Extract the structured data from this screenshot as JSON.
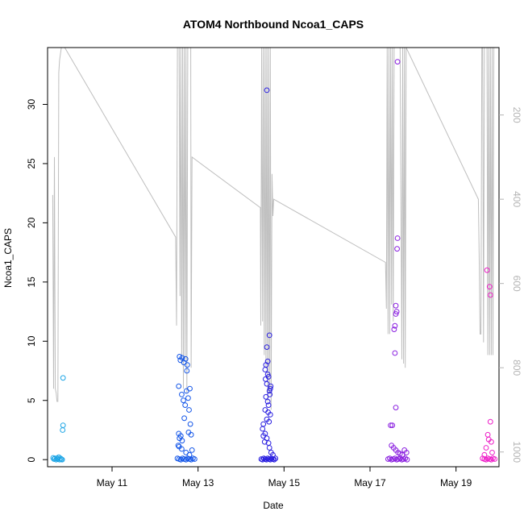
{
  "chart_data": {
    "type": "scatter",
    "title": "ATOM4 Northbound Ncoa1_CAPS",
    "xlabel": "Date",
    "ylabel": "Ncoa1_CAPS",
    "x_ticks": [
      "May 11",
      "May 13",
      "May 15",
      "May 17",
      "May 19"
    ],
    "x_tick_days": [
      11,
      13,
      15,
      17,
      19
    ],
    "xlim": [
      9.5,
      20.0
    ],
    "ylim": [
      -0.6,
      34.8
    ],
    "y_ticks": [
      0,
      5,
      10,
      15,
      20,
      25,
      30
    ],
    "y2_ticks": [
      200,
      400,
      600,
      800,
      1000
    ],
    "y2lim": [
      1035,
      40
    ],
    "y2_reversed": true,
    "grid": false,
    "colors": {
      "depth_line": "#bebebe",
      "cast1": "#1fa6e6",
      "cast2": "#1456e8",
      "cast3": "#2a1fe0",
      "cast4": "#8a1fe0",
      "cast5": "#ee1fc8"
    },
    "series": [
      {
        "color": "#1fa6e6",
        "points": [
          [
            9.63,
            0.15
          ],
          [
            9.65,
            0.05
          ],
          [
            9.67,
            0.1
          ],
          [
            9.7,
            0.0
          ],
          [
            9.72,
            0.12
          ],
          [
            9.74,
            0.05
          ],
          [
            9.76,
            0.2
          ],
          [
            9.78,
            0.0
          ],
          [
            9.8,
            0.1
          ],
          [
            9.82,
            0.05
          ],
          [
            9.84,
            0.0
          ],
          [
            9.86,
            6.9
          ],
          [
            9.86,
            2.9
          ],
          [
            9.85,
            2.5
          ]
        ]
      },
      {
        "color": "#1456e8",
        "points": [
          [
            12.52,
            0.1
          ],
          [
            12.56,
            0.05
          ],
          [
            12.6,
            0.0
          ],
          [
            12.64,
            0.1
          ],
          [
            12.68,
            0.05
          ],
          [
            12.72,
            0.0
          ],
          [
            12.76,
            0.1
          ],
          [
            12.8,
            0.05
          ],
          [
            12.84,
            0.0
          ],
          [
            12.88,
            0.1
          ],
          [
            12.92,
            0.05
          ],
          [
            12.57,
            8.7
          ],
          [
            12.59,
            8.4
          ],
          [
            12.63,
            8.6
          ],
          [
            12.67,
            8.2
          ],
          [
            12.71,
            8.5
          ],
          [
            12.75,
            8.0
          ],
          [
            12.55,
            6.2
          ],
          [
            12.62,
            5.5
          ],
          [
            12.66,
            5.0
          ],
          [
            12.7,
            4.6
          ],
          [
            12.73,
            5.8
          ],
          [
            12.77,
            5.2
          ],
          [
            12.79,
            4.2
          ],
          [
            12.68,
            3.5
          ],
          [
            12.82,
            3.0
          ],
          [
            12.55,
            2.2
          ],
          [
            12.57,
            1.8
          ],
          [
            12.6,
            2.0
          ],
          [
            12.63,
            1.6
          ],
          [
            12.78,
            2.3
          ],
          [
            12.84,
            2.1
          ],
          [
            12.56,
            1.1
          ],
          [
            12.62,
            0.9
          ],
          [
            12.72,
            0.6
          ],
          [
            12.8,
            0.4
          ],
          [
            12.86,
            0.8
          ],
          [
            12.74,
            7.5
          ],
          [
            12.81,
            6.0
          ],
          [
            12.54,
            1.2
          ]
        ]
      },
      {
        "color": "#2a1fe0",
        "points": [
          [
            14.47,
            0.05
          ],
          [
            14.5,
            0.0
          ],
          [
            14.53,
            0.1
          ],
          [
            14.56,
            0.05
          ],
          [
            14.59,
            0.0
          ],
          [
            14.62,
            0.1
          ],
          [
            14.65,
            0.05
          ],
          [
            14.68,
            0.0
          ],
          [
            14.71,
            0.1
          ],
          [
            14.74,
            0.05
          ],
          [
            14.77,
            0.0
          ],
          [
            14.8,
            0.1
          ],
          [
            14.6,
            31.2
          ],
          [
            14.66,
            10.5
          ],
          [
            14.58,
            8.0
          ],
          [
            14.62,
            8.3
          ],
          [
            14.56,
            7.6
          ],
          [
            14.64,
            7.0
          ],
          [
            14.6,
            6.4
          ],
          [
            14.68,
            6.0
          ],
          [
            14.66,
            5.8
          ],
          [
            14.58,
            5.3
          ],
          [
            14.62,
            4.9
          ],
          [
            14.64,
            4.6
          ],
          [
            14.56,
            4.2
          ],
          [
            14.68,
            3.8
          ],
          [
            14.6,
            3.4
          ],
          [
            14.52,
            3.0
          ],
          [
            14.5,
            2.6
          ],
          [
            14.56,
            2.2
          ],
          [
            14.6,
            1.8
          ],
          [
            14.64,
            1.4
          ],
          [
            14.66,
            1.0
          ],
          [
            14.7,
            0.6
          ],
          [
            14.74,
            0.4
          ],
          [
            14.52,
            2.0
          ],
          [
            14.6,
            9.5
          ],
          [
            14.62,
            7.2
          ],
          [
            14.67,
            5.5
          ],
          [
            14.69,
            6.2
          ],
          [
            14.57,
            6.8
          ],
          [
            14.63,
            4.0
          ],
          [
            14.65,
            3.2
          ],
          [
            14.55,
            1.5
          ]
        ]
      },
      {
        "color": "#8a1fe0",
        "points": [
          [
            17.42,
            0.05
          ],
          [
            17.46,
            0.1
          ],
          [
            17.5,
            0.0
          ],
          [
            17.54,
            0.05
          ],
          [
            17.58,
            0.1
          ],
          [
            17.62,
            0.0
          ],
          [
            17.66,
            0.05
          ],
          [
            17.7,
            0.1
          ],
          [
            17.74,
            0.0
          ],
          [
            17.78,
            0.05
          ],
          [
            17.82,
            0.1
          ],
          [
            17.86,
            0.0
          ],
          [
            17.64,
            33.6
          ],
          [
            17.64,
            18.7
          ],
          [
            17.63,
            17.8
          ],
          [
            17.56,
            11.0
          ],
          [
            17.6,
            12.3
          ],
          [
            17.58,
            11.3
          ],
          [
            17.62,
            12.5
          ],
          [
            17.6,
            13.0
          ],
          [
            17.58,
            9.0
          ],
          [
            17.6,
            4.4
          ],
          [
            17.48,
            2.9
          ],
          [
            17.52,
            2.9
          ],
          [
            17.5,
            1.2
          ],
          [
            17.55,
            1.0
          ],
          [
            17.6,
            0.8
          ],
          [
            17.65,
            0.6
          ],
          [
            17.7,
            0.5
          ],
          [
            17.75,
            0.4
          ],
          [
            17.8,
            0.8
          ],
          [
            17.85,
            0.6
          ]
        ]
      },
      {
        "color": "#ee1fc8",
        "points": [
          [
            19.62,
            0.1
          ],
          [
            19.66,
            0.05
          ],
          [
            19.7,
            0.0
          ],
          [
            19.74,
            0.1
          ],
          [
            19.78,
            0.05
          ],
          [
            19.82,
            0.0
          ],
          [
            19.86,
            0.1
          ],
          [
            19.9,
            0.05
          ],
          [
            19.72,
            16.0
          ],
          [
            19.78,
            14.6
          ],
          [
            19.8,
            13.9
          ],
          [
            19.8,
            3.2
          ],
          [
            19.74,
            2.1
          ],
          [
            19.76,
            1.7
          ],
          [
            19.82,
            1.5
          ],
          [
            19.7,
            1.0
          ],
          [
            19.84,
            0.6
          ],
          [
            19.66,
            0.4
          ]
        ]
      }
    ],
    "depth_line": [
      [
        9.62,
        390
      ],
      [
        9.64,
        850
      ],
      [
        9.66,
        300
      ],
      [
        9.68,
        850
      ],
      [
        9.7,
        860
      ],
      [
        9.72,
        880
      ],
      [
        9.74,
        880
      ],
      [
        9.76,
        100
      ],
      [
        9.78,
        70
      ],
      [
        9.82,
        40
      ],
      [
        9.9,
        40
      ],
      [
        12.48,
        490
      ],
      [
        12.5,
        700
      ],
      [
        12.52,
        40
      ],
      [
        12.56,
        40
      ],
      [
        12.58,
        630
      ],
      [
        12.6,
        40
      ],
      [
        12.62,
        790
      ],
      [
        12.64,
        40
      ],
      [
        12.66,
        850
      ],
      [
        12.68,
        40
      ],
      [
        12.7,
        780
      ],
      [
        12.72,
        40
      ],
      [
        12.74,
        860
      ],
      [
        12.76,
        40
      ],
      [
        12.8,
        40
      ],
      [
        12.83,
        40
      ],
      [
        12.84,
        800
      ],
      [
        12.86,
        300
      ],
      [
        14.45,
        420
      ],
      [
        14.46,
        700
      ],
      [
        14.48,
        40
      ],
      [
        14.5,
        690
      ],
      [
        14.52,
        40
      ],
      [
        14.54,
        770
      ],
      [
        14.56,
        40
      ],
      [
        14.58,
        800
      ],
      [
        14.6,
        40
      ],
      [
        14.62,
        880
      ],
      [
        14.64,
        40
      ],
      [
        14.66,
        860
      ],
      [
        14.68,
        40
      ],
      [
        14.7,
        900
      ],
      [
        14.72,
        340
      ],
      [
        14.74,
        440
      ],
      [
        14.76,
        400
      ],
      [
        17.36,
        550
      ],
      [
        17.38,
        660
      ],
      [
        17.4,
        40
      ],
      [
        17.42,
        720
      ],
      [
        17.44,
        40
      ],
      [
        17.46,
        720
      ],
      [
        17.48,
        40
      ],
      [
        17.5,
        650
      ],
      [
        17.52,
        40
      ],
      [
        17.54,
        690
      ],
      [
        17.56,
        40
      ],
      [
        17.6,
        40
      ],
      [
        17.65,
        40
      ],
      [
        17.7,
        40
      ],
      [
        17.74,
        780
      ],
      [
        17.76,
        40
      ],
      [
        17.78,
        790
      ],
      [
        17.8,
        40
      ],
      [
        17.82,
        800
      ],
      [
        17.84,
        40
      ],
      [
        19.52,
        400
      ],
      [
        19.54,
        550
      ],
      [
        19.56,
        720
      ],
      [
        19.58,
        720
      ],
      [
        19.6,
        40
      ],
      [
        19.62,
        40
      ],
      [
        19.64,
        740
      ],
      [
        19.66,
        40
      ],
      [
        19.7,
        40
      ],
      [
        19.72,
        40
      ],
      [
        19.74,
        770
      ],
      [
        19.76,
        40
      ],
      [
        19.78,
        770
      ],
      [
        19.8,
        40
      ],
      [
        19.82,
        770
      ],
      [
        19.84,
        40
      ],
      [
        19.86,
        770
      ],
      [
        19.88,
        40
      ]
    ]
  }
}
